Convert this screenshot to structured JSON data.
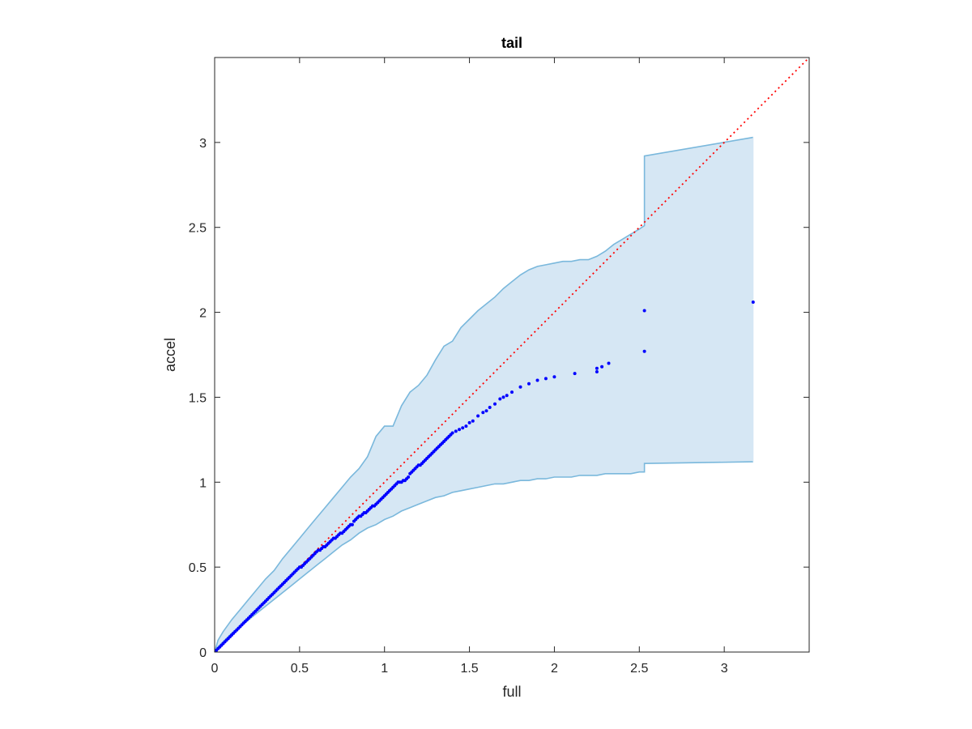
{
  "chart_data": {
    "type": "scatter",
    "title": "tail",
    "xlabel": "full",
    "ylabel": "accel",
    "xlim": [
      0,
      3.5
    ],
    "ylim": [
      0,
      3.5
    ],
    "xticks": [
      "0",
      "0.5",
      "1",
      "1.5",
      "2",
      "2.5",
      "3"
    ],
    "yticks": [
      "0",
      "0.5",
      "1",
      "1.5",
      "2",
      "2.5",
      "3"
    ],
    "grid": false,
    "box": true,
    "colors": {
      "points": "#0000ff",
      "reference_line": "#ff0000",
      "band_fill": "#d6e7f4",
      "band_edge": "#7ab8dc",
      "axes": "#262626"
    },
    "reference_line": {
      "x": [
        0,
        3.5
      ],
      "y": [
        0,
        3.5
      ],
      "style": "dotted"
    },
    "band": {
      "x": [
        0,
        0.02,
        0.05,
        0.1,
        0.15,
        0.2,
        0.25,
        0.3,
        0.35,
        0.4,
        0.45,
        0.5,
        0.55,
        0.6,
        0.65,
        0.7,
        0.75,
        0.8,
        0.85,
        0.9,
        0.95,
        1.0,
        1.05,
        1.1,
        1.15,
        1.2,
        1.25,
        1.3,
        1.35,
        1.4,
        1.45,
        1.5,
        1.55,
        1.6,
        1.65,
        1.7,
        1.75,
        1.8,
        1.85,
        1.9,
        1.95,
        2.0,
        2.05,
        2.1,
        2.15,
        2.2,
        2.25,
        2.3,
        2.35,
        2.4,
        2.45,
        2.5,
        2.53,
        2.53,
        3.17
      ],
      "upper": [
        0,
        0.07,
        0.12,
        0.19,
        0.25,
        0.31,
        0.37,
        0.43,
        0.48,
        0.55,
        0.61,
        0.67,
        0.73,
        0.79,
        0.85,
        0.91,
        0.97,
        1.03,
        1.08,
        1.15,
        1.27,
        1.33,
        1.33,
        1.45,
        1.53,
        1.57,
        1.63,
        1.72,
        1.8,
        1.83,
        1.91,
        1.96,
        2.01,
        2.05,
        2.09,
        2.14,
        2.18,
        2.22,
        2.25,
        2.27,
        2.28,
        2.29,
        2.3,
        2.3,
        2.31,
        2.31,
        2.33,
        2.36,
        2.4,
        2.43,
        2.46,
        2.49,
        2.51,
        2.92,
        3.03
      ],
      "lower": [
        0,
        0.03,
        0.06,
        0.11,
        0.15,
        0.19,
        0.23,
        0.27,
        0.31,
        0.35,
        0.39,
        0.43,
        0.47,
        0.51,
        0.55,
        0.59,
        0.63,
        0.66,
        0.7,
        0.73,
        0.75,
        0.78,
        0.8,
        0.83,
        0.85,
        0.87,
        0.89,
        0.91,
        0.92,
        0.94,
        0.95,
        0.96,
        0.97,
        0.98,
        0.99,
        0.99,
        1.0,
        1.01,
        1.01,
        1.02,
        1.02,
        1.03,
        1.03,
        1.03,
        1.04,
        1.04,
        1.04,
        1.05,
        1.05,
        1.05,
        1.05,
        1.06,
        1.06,
        1.11,
        1.12
      ]
    },
    "series": [
      {
        "x": [
          0.01,
          0.02,
          0.03,
          0.04,
          0.05,
          0.06,
          0.07,
          0.08,
          0.09,
          0.1,
          0.11,
          0.12,
          0.13,
          0.14,
          0.15,
          0.16,
          0.17,
          0.18,
          0.19,
          0.2,
          0.21,
          0.22,
          0.23,
          0.24,
          0.25,
          0.26,
          0.27,
          0.28,
          0.29,
          0.3,
          0.31,
          0.32,
          0.33,
          0.34,
          0.35,
          0.36,
          0.37,
          0.38,
          0.39,
          0.4,
          0.41,
          0.42,
          0.43,
          0.44,
          0.45,
          0.46,
          0.47,
          0.48,
          0.49,
          0.5,
          0.51,
          0.52,
          0.53,
          0.54,
          0.55,
          0.56,
          0.57,
          0.58,
          0.59,
          0.6,
          0.61,
          0.62,
          0.63,
          0.64,
          0.65,
          0.66,
          0.67,
          0.68,
          0.69,
          0.7,
          0.71,
          0.72,
          0.73,
          0.74,
          0.75,
          0.76,
          0.77,
          0.78,
          0.79,
          0.8,
          0.81,
          0.82,
          0.83,
          0.84,
          0.85,
          0.86,
          0.87,
          0.88,
          0.89,
          0.9,
          0.91,
          0.92,
          0.93,
          0.94,
          0.95,
          0.96,
          0.97,
          0.98,
          0.99,
          1.0,
          1.01,
          1.02,
          1.03,
          1.04,
          1.05,
          1.06,
          1.07,
          1.08,
          1.09,
          1.1,
          1.11,
          1.12,
          1.13,
          1.14,
          1.15,
          1.16,
          1.17,
          1.18,
          1.19,
          1.2,
          1.21,
          1.22,
          1.23,
          1.24,
          1.25,
          1.26,
          1.27,
          1.28,
          1.29,
          1.3,
          1.31,
          1.32,
          1.33,
          1.34,
          1.35,
          1.36,
          1.37,
          1.38,
          1.39,
          1.4,
          1.42,
          1.44,
          1.46,
          1.48,
          1.5,
          1.52,
          1.55,
          1.58,
          1.6,
          1.62,
          1.65,
          1.68,
          1.7,
          1.72,
          1.75,
          1.8,
          1.85,
          1.9,
          1.95,
          2.0,
          2.12,
          2.25,
          2.25,
          2.28,
          2.32,
          2.53,
          2.53,
          3.17
        ],
        "y": [
          0.01,
          0.02,
          0.03,
          0.04,
          0.05,
          0.06,
          0.07,
          0.08,
          0.09,
          0.1,
          0.11,
          0.12,
          0.13,
          0.14,
          0.15,
          0.16,
          0.17,
          0.18,
          0.19,
          0.2,
          0.21,
          0.22,
          0.23,
          0.24,
          0.25,
          0.26,
          0.27,
          0.28,
          0.29,
          0.3,
          0.31,
          0.32,
          0.33,
          0.34,
          0.35,
          0.36,
          0.37,
          0.38,
          0.39,
          0.4,
          0.41,
          0.42,
          0.43,
          0.44,
          0.45,
          0.46,
          0.47,
          0.48,
          0.49,
          0.5,
          0.5,
          0.51,
          0.52,
          0.53,
          0.54,
          0.55,
          0.56,
          0.57,
          0.58,
          0.59,
          0.6,
          0.6,
          0.61,
          0.62,
          0.62,
          0.63,
          0.64,
          0.65,
          0.66,
          0.67,
          0.67,
          0.68,
          0.69,
          0.7,
          0.7,
          0.71,
          0.72,
          0.73,
          0.74,
          0.75,
          0.75,
          0.77,
          0.78,
          0.79,
          0.8,
          0.8,
          0.81,
          0.82,
          0.82,
          0.83,
          0.84,
          0.85,
          0.86,
          0.86,
          0.87,
          0.88,
          0.89,
          0.9,
          0.91,
          0.92,
          0.93,
          0.94,
          0.95,
          0.96,
          0.97,
          0.98,
          0.99,
          1.0,
          1.0,
          1.0,
          1.01,
          1.01,
          1.02,
          1.03,
          1.05,
          1.06,
          1.07,
          1.08,
          1.09,
          1.1,
          1.1,
          1.11,
          1.12,
          1.13,
          1.14,
          1.15,
          1.16,
          1.17,
          1.18,
          1.19,
          1.2,
          1.21,
          1.22,
          1.23,
          1.24,
          1.25,
          1.26,
          1.27,
          1.28,
          1.29,
          1.3,
          1.31,
          1.32,
          1.33,
          1.35,
          1.36,
          1.39,
          1.41,
          1.42,
          1.44,
          1.46,
          1.49,
          1.5,
          1.51,
          1.53,
          1.56,
          1.58,
          1.6,
          1.61,
          1.62,
          1.64,
          1.65,
          1.67,
          1.68,
          1.7,
          1.77,
          2.01,
          2.06
        ]
      }
    ]
  }
}
